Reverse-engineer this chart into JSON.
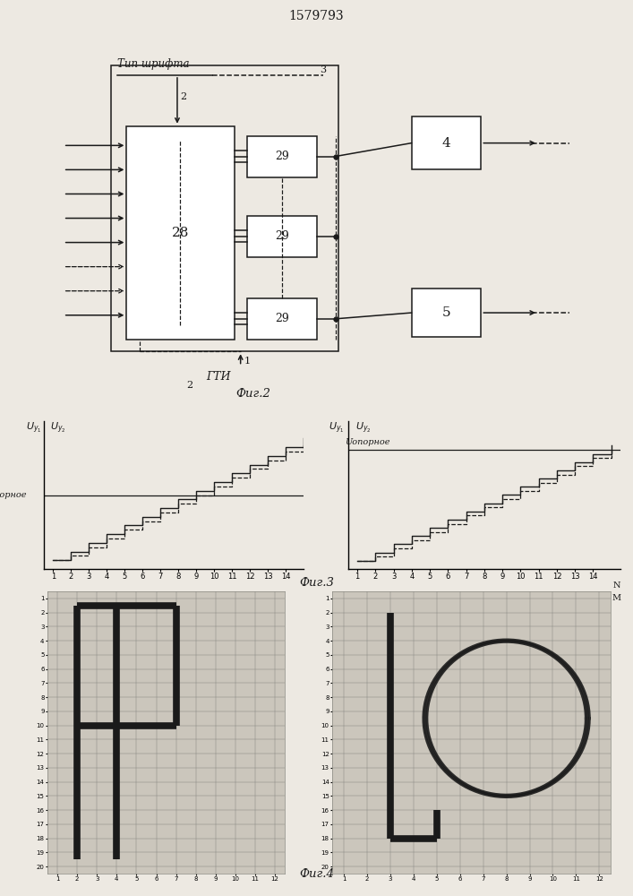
{
  "title": "1579793",
  "bg_color": "#ede9e2",
  "fig2_label": "Фиг.2",
  "fig3_label": "Фиг.3",
  "fig4_label": "Фиг.4",
  "font_type_label": "Тип шрифта",
  "block28_label": "28",
  "block29_labels": [
    "29",
    "29",
    "29"
  ],
  "block4_label": "4",
  "block5_label": "5",
  "gti_label": "ГТИ",
  "Uopornoe_left": "Uопорное",
  "Uopornoe_right": "Uопорное",
  "Uy1_left": "Uу₁",
  "Uy2_left": "Uу₂",
  "Uy1_right": "Uу₁",
  "Uy2_right": "Uу₂"
}
